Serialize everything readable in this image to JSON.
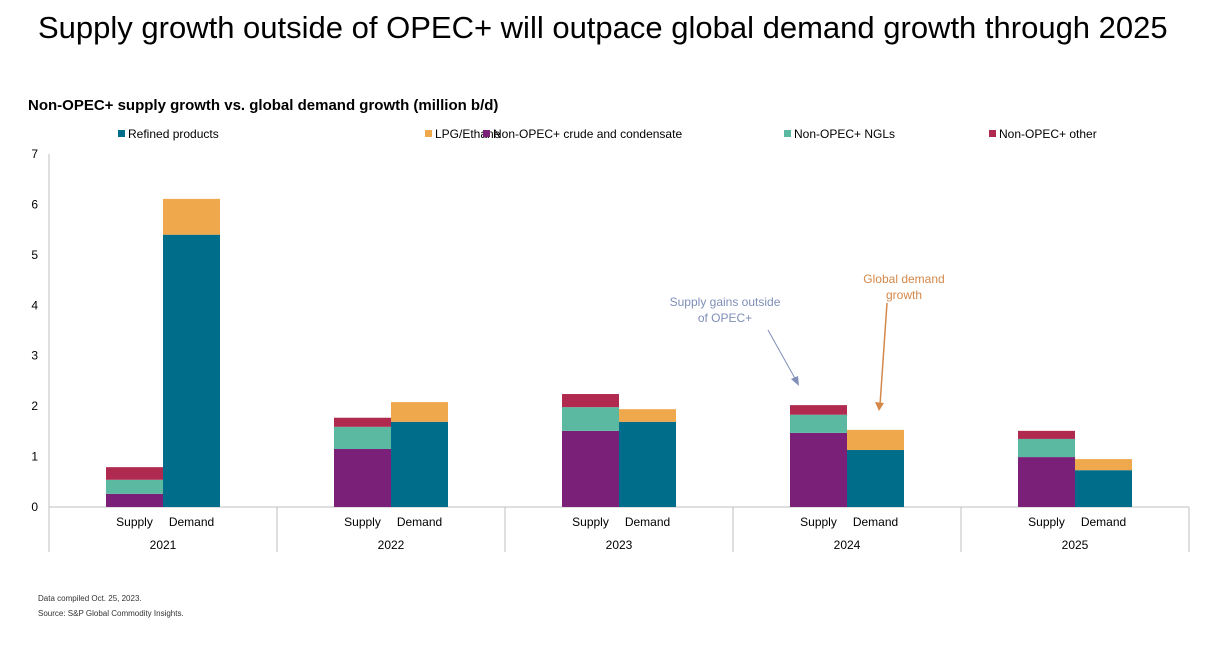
{
  "title": "Supply growth outside of OPEC+ will outpace global demand growth through 2025",
  "chart_data": {
    "type": "bar",
    "stacked": true,
    "title": "Non-OPEC+ supply growth vs. global demand growth (million b/d)",
    "ylim": [
      0,
      7
    ],
    "yticks": [
      "0",
      "1",
      "2",
      "3",
      "4",
      "5",
      "6",
      "7"
    ],
    "grid": false,
    "legend_position": "top",
    "groups": [
      "2021",
      "2022",
      "2023",
      "2024",
      "2025"
    ],
    "bar_labels": [
      "Supply",
      "Demand"
    ],
    "series": [
      {
        "name": "Refined products",
        "color": "#006e8a",
        "bar": "Demand",
        "values": [
          5.4,
          1.69,
          1.69,
          1.13,
          0.73
        ]
      },
      {
        "name": "LPG/Ethane",
        "color": "#f0a84c",
        "bar": "Demand",
        "values": [
          0.71,
          0.39,
          0.25,
          0.4,
          0.22
        ]
      },
      {
        "name": "Non-OPEC+ crude and condensate",
        "color": "#7b2079",
        "bar": "Supply",
        "values": [
          0.26,
          1.15,
          1.51,
          1.47,
          0.99
        ]
      },
      {
        "name": "Non-OPEC+ NGLs",
        "color": "#5ab9a0",
        "bar": "Supply",
        "values": [
          0.28,
          0.44,
          0.47,
          0.36,
          0.36
        ]
      },
      {
        "name": "Non-OPEC+ other",
        "color": "#b0294f",
        "bar": "Supply",
        "values": [
          0.25,
          0.18,
          0.26,
          0.19,
          0.16
        ]
      }
    ],
    "annotations": [
      {
        "lines": [
          "Supply gains outside",
          "of OPEC+"
        ],
        "color": "#7f8fb8",
        "target": "2024 Supply"
      },
      {
        "lines": [
          "Global demand",
          "growth"
        ],
        "color": "#d4884a",
        "target": "2024 Demand"
      }
    ]
  },
  "notes": [
    "Data compiled Oct. 25, 2023.",
    "Source: S&P Global Commodity Insights."
  ]
}
